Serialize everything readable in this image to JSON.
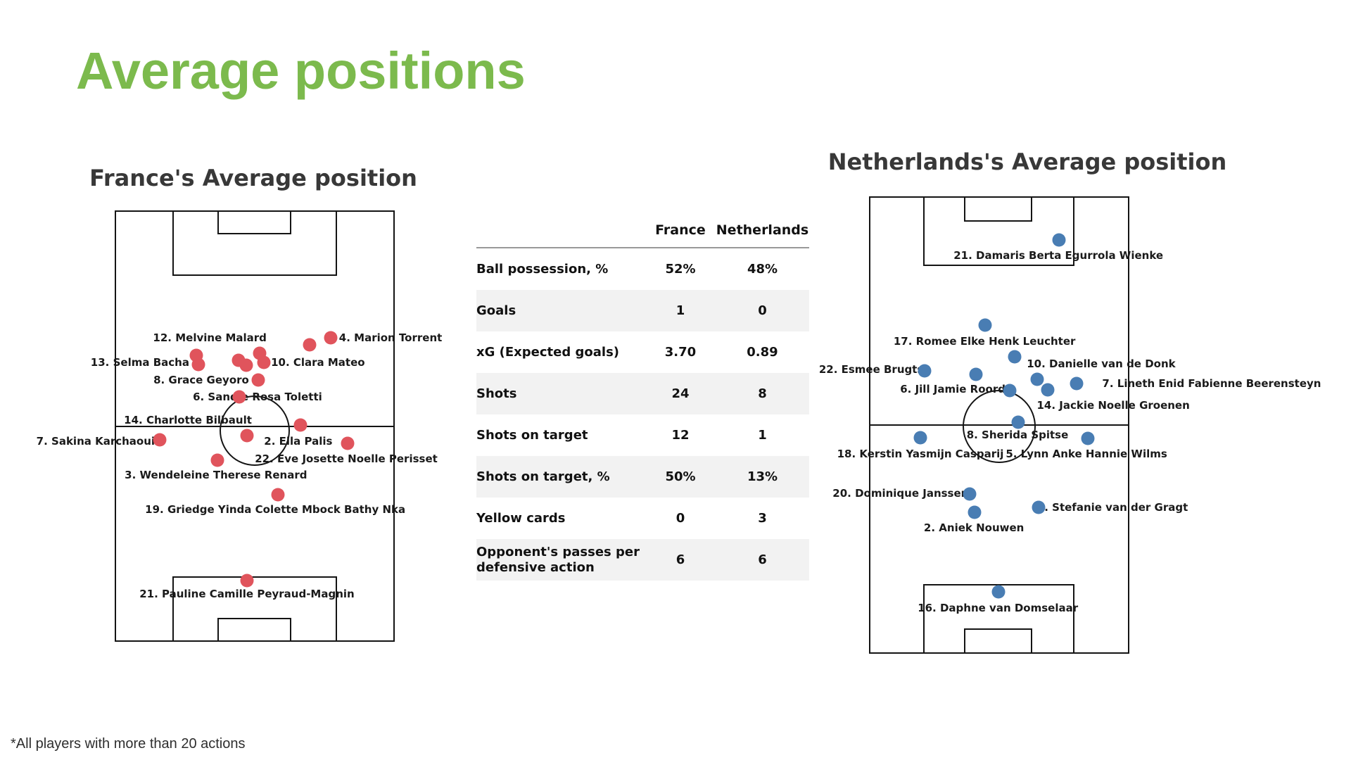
{
  "page": {
    "title": "Average positions",
    "footnote": "*All players with more than 20 actions"
  },
  "colors": {
    "title_green": "#7cba4d",
    "france_dot": "#e0545c",
    "netherlands_dot": "#497db3",
    "pitch_line": "#141414",
    "row_shade": "#f2f2f2"
  },
  "chart_data": [
    {
      "type": "scatter",
      "id": "france",
      "title": "France's Average position",
      "dot_color": "#e0545c",
      "coords": "percent of pitch, x left-to-right, y top-to-bottom",
      "players": [
        {
          "label": "12. Melvine Malard",
          "dot": {
            "x": 44.2,
            "y": 34.6
          },
          "label_pos": {
            "x": 33.8,
            "y": 29.4
          }
        },
        {
          "label": "4. Marion Torrent",
          "dot": {
            "x": 77.4,
            "y": 29.4
          },
          "label_pos": {
            "x": 99.0,
            "y": 29.4
          }
        },
        {
          "label": "13. Selma Bacha",
          "dot": {
            "x": 29.7,
            "y": 35.6
          },
          "label_pos": {
            "x": 8.6,
            "y": 35.1
          }
        },
        {
          "label": "10. Clara Mateo",
          "dot": {
            "x": 53.3,
            "y": 35.1
          },
          "label_pos": {
            "x": 72.8,
            "y": 35.1
          }
        },
        {
          "label": "8. Grace Geyoro",
          "dot": {
            "x": 51.3,
            "y": 39.2
          },
          "label_pos": {
            "x": 30.7,
            "y": 39.2
          }
        },
        {
          "label": "6. Sandie Rosa Toletti",
          "dot": {
            "x": 44.4,
            "y": 43.2
          },
          "label_pos": {
            "x": 51.0,
            "y": 43.2
          }
        },
        {
          "label": "14. Charlotte Bilbault",
          "dot": {
            "x": 47.2,
            "y": 52.2
          },
          "label_pos": {
            "x": 25.9,
            "y": 48.6
          }
        },
        {
          "label": "7. Sakina Karchaoui",
          "dot": {
            "x": 15.7,
            "y": 53.2
          },
          "label_pos": {
            "x": -7.4,
            "y": 53.5
          }
        },
        {
          "label": "2. Ella Palis",
          "dot": {
            "x": 66.5,
            "y": 49.8
          },
          "label_pos": {
            "x": 65.7,
            "y": 53.5
          }
        },
        {
          "label": "22. Eve Josette Noelle Perisset",
          "dot": {
            "x": 83.5,
            "y": 54.0
          },
          "label_pos": {
            "x": 83.0,
            "y": 57.6
          }
        },
        {
          "label": "3. Wendeleine Therese Renard",
          "dot": {
            "x": 36.5,
            "y": 58.0
          },
          "label_pos": {
            "x": 36.0,
            "y": 61.4
          }
        },
        {
          "label": "19. Griedge Yinda Colette Mbock Bathy Nka",
          "dot": {
            "x": 58.4,
            "y": 66.0
          },
          "label_pos": {
            "x": 57.4,
            "y": 69.5
          }
        },
        {
          "label": "21. Pauline Camille Peyraud-Magnin",
          "dot": {
            "x": 47.2,
            "y": 86.0
          },
          "label_pos": {
            "x": 47.2,
            "y": 89.2
          }
        }
      ],
      "extra_dots": [
        {
          "x": 28.9,
          "y": 33.5
        },
        {
          "x": 47.0,
          "y": 35.8
        },
        {
          "x": 51.8,
          "y": 33.0
        },
        {
          "x": 69.8,
          "y": 31.0
        }
      ]
    },
    {
      "type": "scatter",
      "id": "netherlands",
      "title": "Netherlands's Average position",
      "dot_color": "#497db3",
      "coords": "percent of pitch, x left-to-right, y top-to-bottom",
      "players": [
        {
          "label": "21. Damaris Berta Egurrola Wienke",
          "dot": {
            "x": 73.2,
            "y": 9.3
          },
          "label_pos": {
            "x": 73.0,
            "y": 12.7
          }
        },
        {
          "label": "17. Romee Elke Henk Leuchter",
          "dot": {
            "x": 44.5,
            "y": 28.0
          },
          "label_pos": {
            "x": 44.3,
            "y": 31.6
          }
        },
        {
          "label": "22. Esmee Brugts",
          "dot": {
            "x": 21.0,
            "y": 38.1
          },
          "label_pos": {
            "x": 0.3,
            "y": 37.8
          }
        },
        {
          "label": "10. Danielle van de Donk",
          "dot": {
            "x": 56.0,
            "y": 35.0
          },
          "label_pos": {
            "x": 89.6,
            "y": 36.5
          }
        },
        {
          "label": "6. Jill Jamie Roord",
          "dot": {
            "x": 54.1,
            "y": 42.4
          },
          "label_pos": {
            "x": 32.0,
            "y": 42.1
          }
        },
        {
          "label": "7. Lineth Enid Fabienne Beerensteyn",
          "dot": {
            "x": 80.1,
            "y": 40.9
          },
          "label_pos": {
            "x": 132.5,
            "y": 40.9
          }
        },
        {
          "label": "14. Jackie Noelle Groenen",
          "dot": {
            "x": 68.9,
            "y": 42.3
          },
          "label_pos": {
            "x": 94.3,
            "y": 45.7
          }
        },
        {
          "label": "8. Sherida Spitse",
          "dot": {
            "x": 57.4,
            "y": 49.4
          },
          "label_pos": {
            "x": 57.1,
            "y": 52.2
          }
        },
        {
          "label": "18. Kerstin Yasmijn Casparij",
          "dot": {
            "x": 19.4,
            "y": 52.8
          },
          "label_pos": {
            "x": 19.4,
            "y": 56.3
          }
        },
        {
          "label": "5. Lynn Anke Hannie Wilms",
          "dot": {
            "x": 84.4,
            "y": 52.9
          },
          "label_pos": {
            "x": 83.9,
            "y": 56.3
          }
        },
        {
          "label": "20. Dominique Janssen",
          "dot": {
            "x": 38.5,
            "y": 65.2
          },
          "label_pos": {
            "x": 11.7,
            "y": 65.0
          }
        },
        {
          "label": "2. Aniek Nouwen",
          "dot": {
            "x": 40.4,
            "y": 69.2
          },
          "label_pos": {
            "x": 40.2,
            "y": 72.6
          }
        },
        {
          "label": "3. Stefanie van der Gragt",
          "dot": {
            "x": 65.3,
            "y": 68.1
          },
          "label_pos": {
            "x": 94.0,
            "y": 68.1
          }
        },
        {
          "label": "16. Daphne van Domselaar",
          "dot": {
            "x": 49.7,
            "y": 86.7
          },
          "label_pos": {
            "x": 49.5,
            "y": 90.2
          }
        }
      ],
      "extra_dots": [
        {
          "x": 41.0,
          "y": 38.9
        },
        {
          "x": 64.8,
          "y": 39.9
        }
      ]
    },
    {
      "type": "table",
      "id": "match-stats",
      "columns": [
        "France",
        "Netherlands"
      ],
      "rows": [
        {
          "label": "Ball possession, %",
          "france": "52%",
          "netherlands": "48%",
          "shaded": false
        },
        {
          "label": "Goals",
          "france": "1",
          "netherlands": "0",
          "shaded": true
        },
        {
          "label": "xG (Expected goals)",
          "france": "3.70",
          "netherlands": "0.89",
          "shaded": false
        },
        {
          "label": "Shots",
          "france": "24",
          "netherlands": "8",
          "shaded": true
        },
        {
          "label": "Shots on target",
          "france": "12",
          "netherlands": "1",
          "shaded": false
        },
        {
          "label": "Shots on target, %",
          "france": "50%",
          "netherlands": "13%",
          "shaded": true
        },
        {
          "label": "Yellow cards",
          "france": "0",
          "netherlands": "3",
          "shaded": false
        },
        {
          "label": "Opponent's passes per defensive action",
          "france": "6",
          "netherlands": "6",
          "shaded": true
        }
      ]
    }
  ]
}
